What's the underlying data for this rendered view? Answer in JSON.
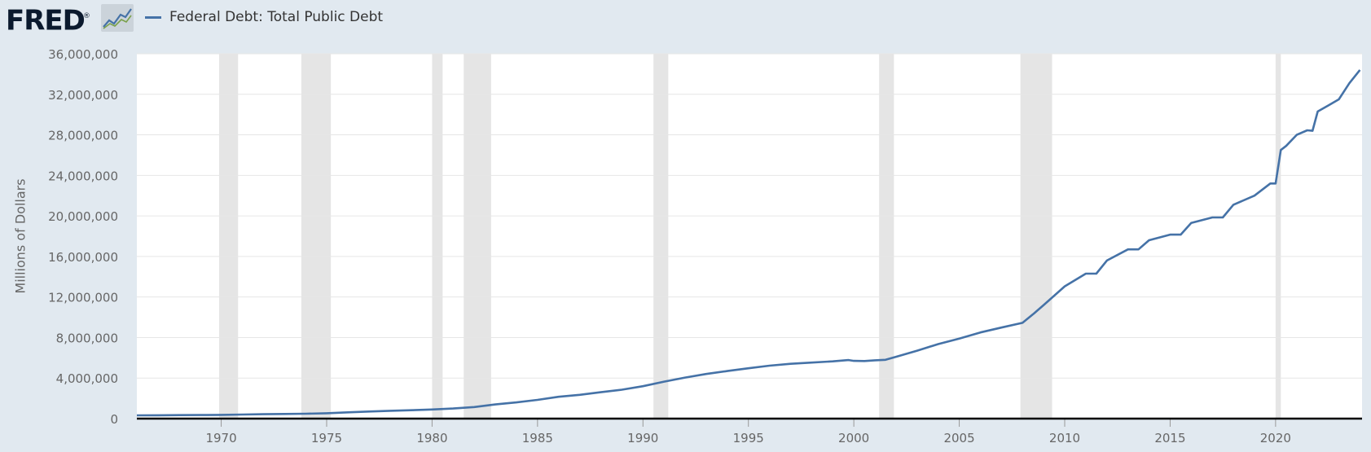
{
  "header": {
    "logo_text": "FRED",
    "logo_registered": "®",
    "logo_icon": "line-chart-icon"
  },
  "chart_data": {
    "type": "line",
    "title": "",
    "xlabel": "",
    "ylabel": "Millions of Dollars",
    "ylim": [
      0,
      36000000
    ],
    "xlim": [
      1966.0,
      2024.1
    ],
    "y_ticks": [
      "0",
      "4,000,000",
      "8,000,000",
      "12,000,000",
      "16,000,000",
      "20,000,000",
      "24,000,000",
      "28,000,000",
      "32,000,000",
      "36,000,000"
    ],
    "y_tick_values": [
      0,
      4000000,
      8000000,
      12000000,
      16000000,
      20000000,
      24000000,
      28000000,
      32000000,
      36000000
    ],
    "x_ticks": [
      "1970",
      "1975",
      "1980",
      "1985",
      "1990",
      "1995",
      "2000",
      "2005",
      "2010",
      "2015",
      "2020"
    ],
    "x_tick_values": [
      1970,
      1975,
      1980,
      1985,
      1990,
      1995,
      2000,
      2005,
      2010,
      2015,
      2020
    ],
    "grid": "horizontal",
    "legend": "top-left",
    "recessions": [
      [
        1969.9,
        1970.8
      ],
      [
        1973.8,
        1975.2
      ],
      [
        1980.0,
        1980.5
      ],
      [
        1981.5,
        1982.8
      ],
      [
        1990.5,
        1991.2
      ],
      [
        2001.2,
        2001.9
      ],
      [
        2007.9,
        2009.4
      ],
      [
        2020.0,
        2020.25
      ]
    ],
    "colors": {
      "line": "#4572a7",
      "recession": "#e5e5e5",
      "grid": "#e6e6e6",
      "axis": "#000000"
    },
    "series": [
      {
        "name": "Federal Debt: Total Public Debt",
        "x": [
          1966.0,
          1967.0,
          1968.0,
          1969.0,
          1970.0,
          1971.0,
          1972.0,
          1973.0,
          1974.0,
          1975.0,
          1976.0,
          1977.0,
          1978.0,
          1979.0,
          1980.0,
          1981.0,
          1982.0,
          1983.0,
          1984.0,
          1985.0,
          1986.0,
          1987.0,
          1988.0,
          1989.0,
          1990.0,
          1991.0,
          1992.0,
          1993.0,
          1994.0,
          1995.0,
          1996.0,
          1997.0,
          1998.0,
          1999.0,
          1999.75,
          2000.0,
          2000.5,
          2001.0,
          2001.5,
          2002.0,
          2003.0,
          2004.0,
          2005.0,
          2006.0,
          2007.0,
          2008.0,
          2008.5,
          2009.0,
          2010.0,
          2011.0,
          2011.5,
          2012.0,
          2013.0,
          2013.5,
          2014.0,
          2015.0,
          2015.5,
          2016.0,
          2017.0,
          2017.5,
          2018.0,
          2019.0,
          2019.75,
          2020.0,
          2020.25,
          2020.5,
          2021.0,
          2021.5,
          2021.75,
          2022.0,
          2022.5,
          2023.0,
          2023.5,
          2024.0
        ],
        "y": [
          320000,
          330000,
          345000,
          355000,
          370000,
          400000,
          430000,
          460000,
          480000,
          530000,
          620000,
          700000,
          770000,
          830000,
          900000,
          1000000,
          1140000,
          1400000,
          1600000,
          1850000,
          2150000,
          2350000,
          2600000,
          2850000,
          3200000,
          3650000,
          4050000,
          4400000,
          4690000,
          4970000,
          5220000,
          5410000,
          5530000,
          5650000,
          5780000,
          5700000,
          5680000,
          5750000,
          5800000,
          6100000,
          6700000,
          7350000,
          7900000,
          8500000,
          8980000,
          9450000,
          10300000,
          11200000,
          13050000,
          14300000,
          14300000,
          15600000,
          16700000,
          16700000,
          17600000,
          18150000,
          18150000,
          19300000,
          19850000,
          19850000,
          21100000,
          22000000,
          23200000,
          23200000,
          26500000,
          26900000,
          28000000,
          28450000,
          28400000,
          30300000,
          30900000,
          31500000,
          33100000,
          34400000
        ]
      }
    ]
  }
}
